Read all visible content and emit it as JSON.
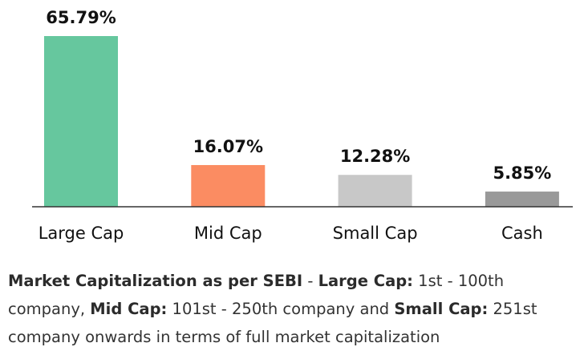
{
  "chart_data": {
    "type": "bar",
    "categories": [
      "Large Cap",
      "Mid Cap",
      "Small Cap",
      "Cash"
    ],
    "values": [
      65.79,
      16.07,
      12.28,
      5.85
    ],
    "data_labels": [
      "65.79%",
      "16.07%",
      "12.28%",
      "5.85%"
    ],
    "colors": [
      "#66c79e",
      "#fb8c62",
      "#c8c8c8",
      "#999999"
    ],
    "ylim": [
      0,
      65.79
    ],
    "grid": false,
    "axis_color": "#333333"
  },
  "note": {
    "heading": "Market Capitalization as per SEBI",
    "sep": " - ",
    "large_label": "Large Cap:",
    "large_text": " 1st - 100th company, ",
    "mid_label": "Mid Cap:",
    "mid_text": " 101st - 250th company and ",
    "small_label": "Small Cap:",
    "small_text": " 251st company onwards in terms of full market capitalization"
  }
}
